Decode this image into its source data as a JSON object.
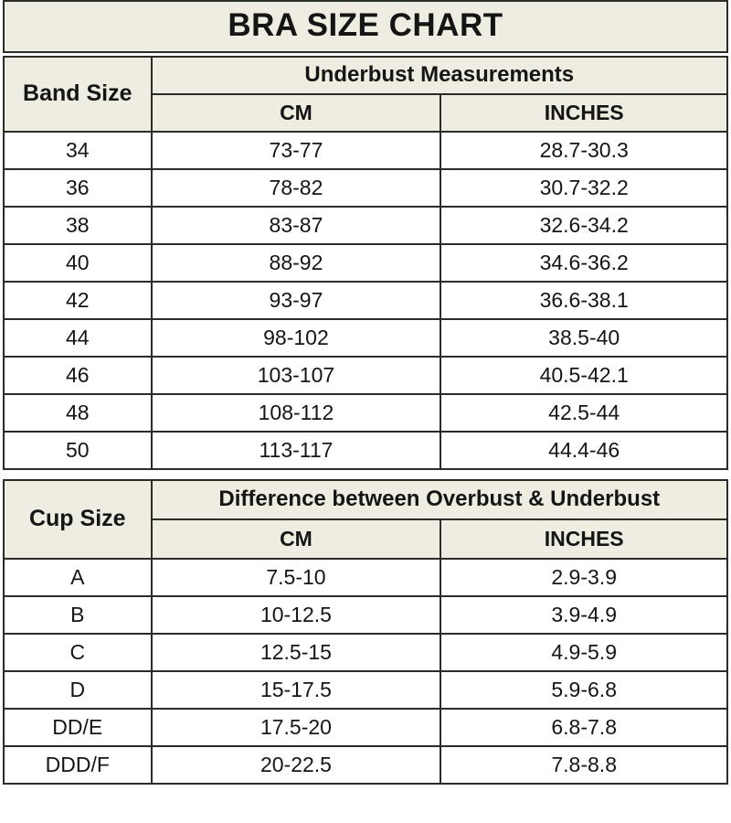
{
  "title": "BRA SIZE CHART",
  "colors": {
    "header_bg": "#EFECE1",
    "border": "#2B2B28",
    "body_bg": "#FFFFFF",
    "text": "#151515"
  },
  "chart_data": [
    {
      "type": "table",
      "title": "BRA SIZE CHART",
      "corner_header": "Band Size",
      "group_header": "Underbust Measurements",
      "columns": [
        "CM",
        "INCHES"
      ],
      "rows": [
        [
          "34",
          "73-77",
          "28.7-30.3"
        ],
        [
          "36",
          "78-82",
          "30.7-32.2"
        ],
        [
          "38",
          "83-87",
          "32.6-34.2"
        ],
        [
          "40",
          "88-92",
          "34.6-36.2"
        ],
        [
          "42",
          "93-97",
          "36.6-38.1"
        ],
        [
          "44",
          "98-102",
          "38.5-40"
        ],
        [
          "46",
          "103-107",
          "40.5-42.1"
        ],
        [
          "48",
          "108-112",
          "42.5-44"
        ],
        [
          "50",
          "113-117",
          "44.4-46"
        ]
      ]
    },
    {
      "type": "table",
      "corner_header": "Cup Size",
      "group_header": "Difference between Overbust & Underbust",
      "columns": [
        "CM",
        "INCHES"
      ],
      "rows": [
        [
          "A",
          "7.5-10",
          "2.9-3.9"
        ],
        [
          "B",
          "10-12.5",
          "3.9-4.9"
        ],
        [
          "C",
          "12.5-15",
          "4.9-5.9"
        ],
        [
          "D",
          "15-17.5",
          "5.9-6.8"
        ],
        [
          "DD/E",
          "17.5-20",
          "6.8-7.8"
        ],
        [
          "DDD/F",
          "20-22.5",
          "7.8-8.8"
        ]
      ]
    }
  ]
}
